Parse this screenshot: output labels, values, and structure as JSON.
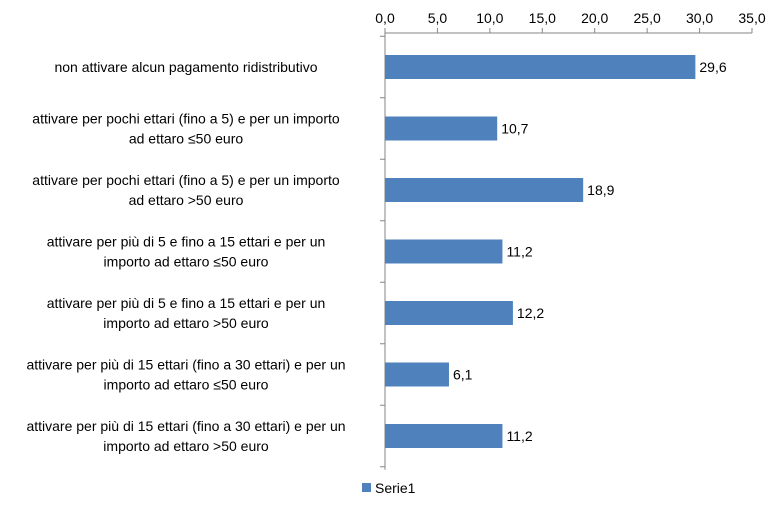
{
  "chart_data": {
    "type": "bar",
    "orientation": "horizontal",
    "categories": [
      [
        "non attivare alcun pagamento ridistributivo"
      ],
      [
        "attivare per pochi ettari (fino a 5) e per un importo",
        "ad ettaro ≤50 euro"
      ],
      [
        "attivare per pochi ettari (fino a 5) e per un importo",
        "ad ettaro >50 euro"
      ],
      [
        "attivare per più di 5 e fino a 15 ettari e per un",
        "importo ad ettaro ≤50 euro"
      ],
      [
        "attivare per più di 5 e fino a 15 ettari e per un",
        "importo ad ettaro >50 euro"
      ],
      [
        "attivare per più di 15 ettari (fino a 30 ettari) e per un",
        "importo ad ettaro ≤50 euro"
      ],
      [
        "attivare per più di 15 ettari (fino a 30 ettari) e per un",
        "importo ad ettaro >50 euro"
      ]
    ],
    "series": [
      {
        "name": "Serie1",
        "color": "#4F81BD",
        "values": [
          29.6,
          10.7,
          18.9,
          11.2,
          12.2,
          6.1,
          11.2
        ],
        "value_labels": [
          "29,6",
          "10,7",
          "18,9",
          "11,2",
          "12,2",
          "6,1",
          "11,2"
        ]
      }
    ],
    "x_ticks": [
      "0,0",
      "5,0",
      "10,0",
      "15,0",
      "20,0",
      "25,0",
      "30,0",
      "35,0"
    ],
    "xlim": [
      0,
      35
    ],
    "x_axis_position": "top",
    "grid": false,
    "legend_position": "bottom"
  }
}
